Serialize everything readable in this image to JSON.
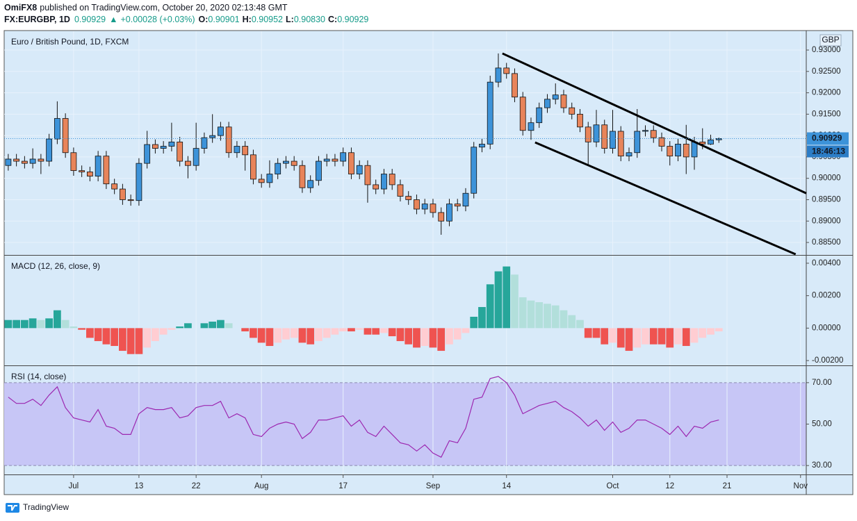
{
  "header": {
    "author": "OmiFX8",
    "published": "published on TradingView.com, October 20, 2020 02:13:48 GMT",
    "symbol": "FX:EURGBP, 1D",
    "last": "0.90929",
    "arrow": "▲",
    "change": "+0.00028 (+0.03%)",
    "ohlc": [
      {
        "label": "O:",
        "value": "0.90901"
      },
      {
        "label": "H:",
        "value": "0.90952"
      },
      {
        "label": "L:",
        "value": "0.90830"
      },
      {
        "label": "C:",
        "value": "0.90929"
      }
    ]
  },
  "footer": {
    "brand": "TradingView"
  },
  "chart_data": [
    {
      "type": "candlestick",
      "title": "Euro / British Pound, 1D, FXCM",
      "currency": "GBP",
      "open": [
        0.903,
        0.9045,
        0.904,
        0.9035,
        0.9045,
        0.904,
        0.9092,
        0.914,
        0.906,
        0.9018,
        0.9015,
        0.9005,
        0.9052,
        0.8987,
        0.8975,
        0.895,
        0.8948,
        0.9035,
        0.9079,
        0.907,
        0.9075,
        0.9085,
        0.904,
        0.903,
        0.907,
        0.9095,
        0.91,
        0.912,
        0.906,
        0.9075,
        0.9055,
        0.8998,
        0.899,
        0.901,
        0.9035,
        0.904,
        0.903,
        0.8978,
        0.8995,
        0.904,
        0.9045,
        0.904,
        0.906,
        0.901,
        0.903,
        0.8985,
        0.8975,
        0.901,
        0.8985,
        0.8958,
        0.895,
        0.8928,
        0.894,
        0.892,
        0.89,
        0.894,
        0.8935,
        0.8965,
        0.9073,
        0.908,
        0.9225,
        0.9258,
        0.9245,
        0.919,
        0.9112,
        0.913,
        0.9165,
        0.9185,
        0.9195,
        0.9165,
        0.915,
        0.912,
        0.9085,
        0.9125,
        0.907,
        0.911,
        0.9052,
        0.906,
        0.911,
        0.9112,
        0.9095,
        0.9075,
        0.9052,
        0.908,
        0.905,
        0.9085,
        0.908,
        0.90901
      ],
      "high": [
        0.9057,
        0.9057,
        0.9052,
        0.907,
        0.9057,
        0.9104,
        0.918,
        0.9152,
        0.9072,
        0.903,
        0.9027,
        0.9064,
        0.9064,
        0.8999,
        0.8987,
        0.8962,
        0.9047,
        0.9111,
        0.9091,
        0.9087,
        0.913,
        0.9097,
        0.9052,
        0.913,
        0.9107,
        0.915,
        0.9132,
        0.9132,
        0.9087,
        0.9087,
        0.9067,
        0.901,
        0.9042,
        0.9047,
        0.9052,
        0.9052,
        0.9042,
        0.9007,
        0.9052,
        0.9057,
        0.9057,
        0.9072,
        0.9072,
        0.9042,
        0.9042,
        0.8997,
        0.9022,
        0.9022,
        0.8997,
        0.897,
        0.8962,
        0.8952,
        0.8952,
        0.8932,
        0.8952,
        0.8952,
        0.8977,
        0.9085,
        0.9092,
        0.924,
        0.9292,
        0.927,
        0.9257,
        0.9202,
        0.9142,
        0.9177,
        0.9197,
        0.9222,
        0.9207,
        0.9177,
        0.9162,
        0.9132,
        0.916,
        0.9137,
        0.916,
        0.9122,
        0.9072,
        0.9162,
        0.9124,
        0.9124,
        0.9107,
        0.9087,
        0.9092,
        0.9125,
        0.9097,
        0.9117,
        0.9102,
        0.90952
      ],
      "low": [
        0.9018,
        0.9028,
        0.9023,
        0.9023,
        0.901,
        0.9028,
        0.908,
        0.9048,
        0.9006,
        0.9003,
        0.8993,
        0.8993,
        0.8975,
        0.8963,
        0.8938,
        0.8936,
        0.8936,
        0.9023,
        0.9058,
        0.9058,
        0.9063,
        0.9028,
        0.9,
        0.9018,
        0.9058,
        0.9083,
        0.9088,
        0.9048,
        0.9048,
        0.9018,
        0.8986,
        0.8978,
        0.8978,
        0.8998,
        0.9023,
        0.9018,
        0.8966,
        0.8966,
        0.8983,
        0.9028,
        0.9028,
        0.9028,
        0.8998,
        0.8998,
        0.8943,
        0.8963,
        0.8963,
        0.8973,
        0.8946,
        0.8938,
        0.8916,
        0.8916,
        0.8908,
        0.8868,
        0.8888,
        0.8923,
        0.8923,
        0.8953,
        0.9061,
        0.9068,
        0.9213,
        0.9233,
        0.9178,
        0.91,
        0.909,
        0.9118,
        0.9153,
        0.9173,
        0.9153,
        0.9138,
        0.9108,
        0.903,
        0.9073,
        0.9058,
        0.9058,
        0.904,
        0.904,
        0.9048,
        0.9098,
        0.9083,
        0.9063,
        0.903,
        0.904,
        0.901,
        0.902,
        0.9068,
        0.9078,
        0.9083
      ],
      "close": [
        0.9045,
        0.904,
        0.9035,
        0.9045,
        0.904,
        0.9092,
        0.914,
        0.906,
        0.9018,
        0.9015,
        0.9005,
        0.9052,
        0.8987,
        0.8975,
        0.895,
        0.8948,
        0.9035,
        0.9079,
        0.907,
        0.9075,
        0.9085,
        0.904,
        0.903,
        0.907,
        0.9095,
        0.91,
        0.912,
        0.906,
        0.9075,
        0.9055,
        0.8998,
        0.899,
        0.901,
        0.9035,
        0.904,
        0.903,
        0.8978,
        0.8995,
        0.904,
        0.9045,
        0.904,
        0.906,
        0.901,
        0.903,
        0.8985,
        0.8975,
        0.901,
        0.8985,
        0.8958,
        0.895,
        0.8928,
        0.894,
        0.892,
        0.89,
        0.894,
        0.8935,
        0.8965,
        0.9073,
        0.908,
        0.9225,
        0.9258,
        0.9245,
        0.919,
        0.9112,
        0.913,
        0.9165,
        0.9185,
        0.9195,
        0.9165,
        0.915,
        0.912,
        0.9085,
        0.9125,
        0.907,
        0.911,
        0.9052,
        0.906,
        0.911,
        0.9112,
        0.9095,
        0.9075,
        0.9052,
        0.908,
        0.905,
        0.9085,
        0.908,
        0.909,
        0.90929
      ],
      "up_color": "#3d93d9",
      "down_color": "#e8845a",
      "ylim": [
        0.88208,
        0.93439
      ],
      "yticks": [
        {
          "value": 0.885,
          "label": "0.88500"
        },
        {
          "value": 0.89,
          "label": "0.89000"
        },
        {
          "value": 0.895,
          "label": "0.89500"
        },
        {
          "value": 0.9,
          "label": "0.90000"
        },
        {
          "value": 0.905,
          "label": "0.90500"
        },
        {
          "value": 0.91,
          "label": "0.91000"
        },
        {
          "value": 0.915,
          "label": "0.91500"
        },
        {
          "value": 0.92,
          "label": "0.92000"
        },
        {
          "value": 0.925,
          "label": "0.92500"
        },
        {
          "value": 0.93,
          "label": "0.93000"
        }
      ],
      "xlim": [
        -0.5,
        97.7
      ],
      "xticks": [
        {
          "value": 8,
          "label": "Jul"
        },
        {
          "value": 16,
          "label": "13"
        },
        {
          "value": 23,
          "label": "22"
        },
        {
          "value": 31,
          "label": "Aug"
        },
        {
          "value": 41,
          "label": "17"
        },
        {
          "value": 52,
          "label": "Sep"
        },
        {
          "value": 61,
          "label": "14"
        },
        {
          "value": 74,
          "label": "Oct"
        },
        {
          "value": 81,
          "label": "12"
        },
        {
          "value": 88,
          "label": "21"
        },
        {
          "value": 97,
          "label": "Nov"
        }
      ],
      "last_price_label": "0.90929",
      "countdown": "18:46:13",
      "trendlines": [
        {
          "x": [
            60.5,
            97.7
          ],
          "y": [
            0.9292,
            0.8965
          ]
        },
        {
          "x": [
            64.5,
            96.4
          ],
          "y": [
            0.9084,
            0.88224
          ]
        }
      ],
      "grid": true
    },
    {
      "type": "histogram",
      "title": "MACD (12, 26, close, 9)",
      "values": [
        0.0005,
        0.0005,
        0.0005,
        0.0006,
        0.0005,
        0.0006,
        0.0011,
        0.0005,
        0.0001,
        -0.0001,
        -0.0006,
        -0.0008,
        -0.001,
        -0.0011,
        -0.0014,
        -0.0016,
        -0.0016,
        -0.0012,
        -0.0008,
        -0.0004,
        -0.0001,
        0.0001,
        0.0003,
        0.0,
        0.0003,
        0.0004,
        0.0005,
        0.0003,
        0.0,
        -0.0002,
        -0.0006,
        -0.0009,
        -0.0011,
        -0.0009,
        -0.0007,
        -0.0006,
        -0.0009,
        -0.001,
        -0.0008,
        -0.0006,
        -0.0004,
        -0.0002,
        -0.0002,
        -0.0001,
        -0.0004,
        -0.0004,
        -0.0003,
        -0.0005,
        -0.0008,
        -0.001,
        -0.0012,
        -0.0011,
        -0.0012,
        -0.0014,
        -0.001,
        -0.0007,
        -0.0003,
        0.0007,
        0.0013,
        0.0027,
        0.0035,
        0.0038,
        0.0033,
        0.0019,
        0.0017,
        0.0016,
        0.0015,
        0.0014,
        0.0011,
        0.0008,
        0.0005,
        -0.0006,
        -0.0006,
        -0.001,
        -0.0009,
        -0.0012,
        -0.0014,
        -0.0012,
        -0.001,
        -0.001,
        -0.001,
        -0.0012,
        -0.001,
        -0.0011,
        -0.0009,
        -0.0006,
        -0.0004,
        -0.0002
      ],
      "colors": {
        "rising_positive": "#26a69a",
        "falling_positive": "#b2dfdb",
        "falling_negative": "#ef5350",
        "rising_negative": "#ffcdd2"
      },
      "ylim": [
        -0.002255,
        0.004468
      ],
      "yticks": [
        {
          "value": -0.002,
          "label": "-0.00200"
        },
        {
          "value": 0,
          "label": "0.00000"
        },
        {
          "value": 0.002,
          "label": "0.00200"
        },
        {
          "value": 0.004,
          "label": "0.00400"
        }
      ]
    },
    {
      "type": "line",
      "title": "RSI (14, close)",
      "color": "#9c27b0",
      "values": [
        63,
        60,
        60,
        62,
        59,
        64,
        68,
        58,
        53,
        52,
        51,
        57,
        49,
        48,
        45,
        45,
        55,
        58,
        57,
        57,
        58,
        53,
        54,
        58,
        59,
        59,
        61,
        53,
        55,
        53,
        45,
        44,
        48,
        50,
        51,
        50,
        43,
        46,
        52,
        52,
        53,
        54,
        49,
        52,
        46,
        44,
        49,
        45,
        41,
        40,
        37,
        40,
        36,
        34,
        42,
        41,
        48,
        62,
        63,
        72,
        73,
        70,
        64,
        55,
        57,
        59,
        60,
        61,
        58,
        56,
        53,
        49,
        52,
        47,
        51,
        46,
        48,
        52,
        52,
        50,
        48,
        45,
        49,
        44,
        49,
        48,
        51,
        52
      ],
      "band": [
        30,
        70
      ],
      "band_color": "#c7c6f6",
      "ylim": [
        25.7,
        78
      ],
      "yticks": [
        {
          "value": 30,
          "label": "30.00"
        },
        {
          "value": 50,
          "label": "50.00"
        },
        {
          "value": 70,
          "label": "70.00"
        }
      ]
    }
  ]
}
